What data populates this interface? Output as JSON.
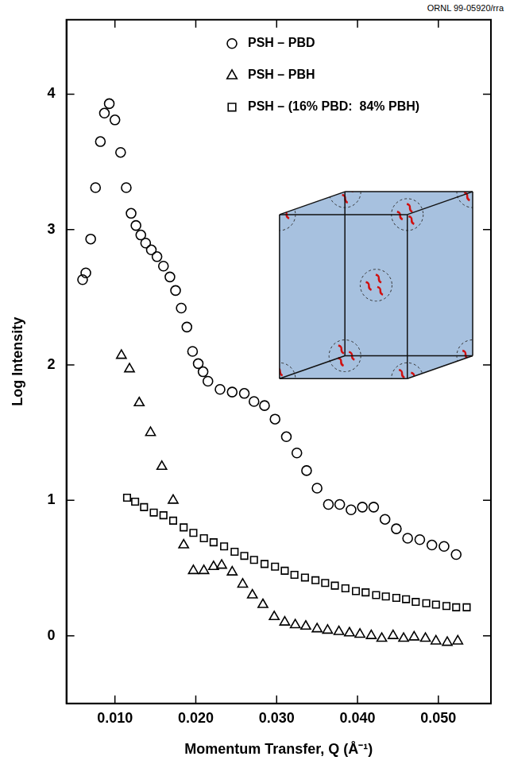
{
  "chart_data": {
    "type": "scatter",
    "annotations": [
      "ORNL 99-05920/rra"
    ],
    "x_label": "Momentum Transfer, Q (Å⁻¹)",
    "y_label": "Log Intensity",
    "xlim": [
      0.004,
      0.0565
    ],
    "ylim": [
      -0.5,
      4.55
    ],
    "xticks": [
      {
        "value": 0.01,
        "label": "0.010"
      },
      {
        "value": 0.02,
        "label": "0.020"
      },
      {
        "value": 0.03,
        "label": "0.030"
      },
      {
        "value": 0.04,
        "label": "0.040"
      },
      {
        "value": 0.05,
        "label": "0.050"
      }
    ],
    "yticks": [
      0,
      1,
      2,
      3,
      4
    ],
    "grid": false,
    "legend": "top",
    "series": [
      {
        "name": "PSH – PBD",
        "color": "#000000",
        "marker": "circle",
        "x": [
          0.006,
          0.0064,
          0.007,
          0.0076,
          0.0082,
          0.0087,
          0.0093,
          0.01,
          0.0107,
          0.0114,
          0.012,
          0.0126,
          0.0132,
          0.0138,
          0.0145,
          0.0152,
          0.016,
          0.0168,
          0.0175,
          0.0182,
          0.0189,
          0.0196,
          0.0203,
          0.0209,
          0.0215,
          0.023,
          0.0245,
          0.026,
          0.0272,
          0.0285,
          0.0298,
          0.0312,
          0.0325,
          0.0337,
          0.035,
          0.0364,
          0.0378,
          0.0392,
          0.0406,
          0.042,
          0.0434,
          0.0448,
          0.0462,
          0.0477,
          0.0492,
          0.0507,
          0.0522
        ],
        "values": [
          2.63,
          2.68,
          2.93,
          3.31,
          3.65,
          3.86,
          3.93,
          3.81,
          3.57,
          3.31,
          3.12,
          3.03,
          2.96,
          2.9,
          2.85,
          2.8,
          2.73,
          2.65,
          2.55,
          2.42,
          2.28,
          2.1,
          2.01,
          1.95,
          1.88,
          1.82,
          1.8,
          1.79,
          1.73,
          1.7,
          1.6,
          1.47,
          1.35,
          1.22,
          1.09,
          0.97,
          0.97,
          0.93,
          0.95,
          0.95,
          0.86,
          0.79,
          0.72,
          0.71,
          0.67,
          0.66,
          0.6
        ]
      },
      {
        "name": "PSH – PBH",
        "color": "#000000",
        "marker": "triangle",
        "x": [
          0.0108,
          0.0118,
          0.013,
          0.0144,
          0.0158,
          0.0172,
          0.0185,
          0.0197,
          0.021,
          0.0222,
          0.0232,
          0.0245,
          0.0258,
          0.027,
          0.0283,
          0.0297,
          0.031,
          0.0323,
          0.0336,
          0.035,
          0.0363,
          0.0377,
          0.039,
          0.0403,
          0.0417,
          0.043,
          0.0444,
          0.0457,
          0.047,
          0.0484,
          0.0497,
          0.0511,
          0.0524
        ],
        "values": [
          2.07,
          1.97,
          1.72,
          1.5,
          1.25,
          1.0,
          0.67,
          0.48,
          0.48,
          0.51,
          0.52,
          0.47,
          0.38,
          0.3,
          0.23,
          0.14,
          0.1,
          0.08,
          0.07,
          0.05,
          0.04,
          0.03,
          0.02,
          0.01,
          0.0,
          -0.02,
          0.0,
          -0.02,
          -0.01,
          -0.02,
          -0.04,
          -0.05,
          -0.04
        ]
      },
      {
        "name": "PSH – (16% PBD:  84% PBH)",
        "color": "#000000",
        "marker": "square",
        "x": [
          0.0115,
          0.0125,
          0.0136,
          0.0148,
          0.016,
          0.0172,
          0.0185,
          0.0197,
          0.021,
          0.0222,
          0.0235,
          0.0248,
          0.026,
          0.0272,
          0.0285,
          0.0298,
          0.031,
          0.0322,
          0.0335,
          0.0348,
          0.036,
          0.0372,
          0.0385,
          0.0398,
          0.041,
          0.0423,
          0.0435,
          0.0448,
          0.046,
          0.0472,
          0.0485,
          0.0497,
          0.051,
          0.0522,
          0.0535
        ],
        "values": [
          1.02,
          0.99,
          0.95,
          0.91,
          0.89,
          0.85,
          0.8,
          0.76,
          0.72,
          0.69,
          0.66,
          0.62,
          0.59,
          0.56,
          0.53,
          0.51,
          0.48,
          0.45,
          0.43,
          0.41,
          0.39,
          0.37,
          0.35,
          0.33,
          0.32,
          0.3,
          0.29,
          0.28,
          0.27,
          0.25,
          0.24,
          0.23,
          0.22,
          0.21,
          0.21
        ]
      }
    ]
  }
}
